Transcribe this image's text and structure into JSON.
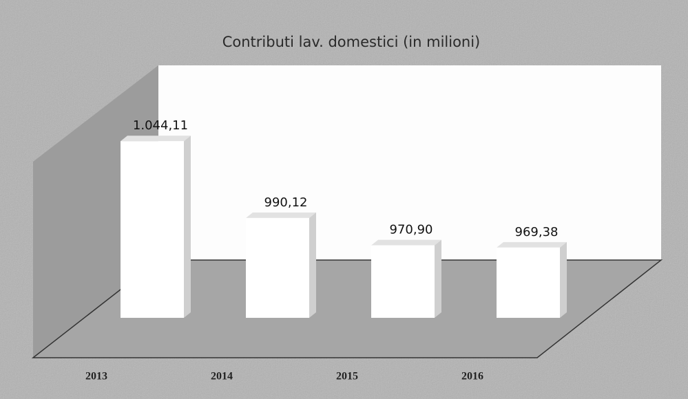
{
  "chart_data": {
    "type": "bar",
    "title": "Contributi lav. domestici  (in milioni)",
    "categories": [
      "2013",
      "2014",
      "2015",
      "2016"
    ],
    "values": [
      1044.11,
      990.12,
      970.9,
      969.38
    ],
    "value_labels": [
      "1.044,11",
      "990,12",
      "970,90",
      "969,38"
    ],
    "color": "#ffffff",
    "ylim": [
      920,
      1050
    ]
  }
}
